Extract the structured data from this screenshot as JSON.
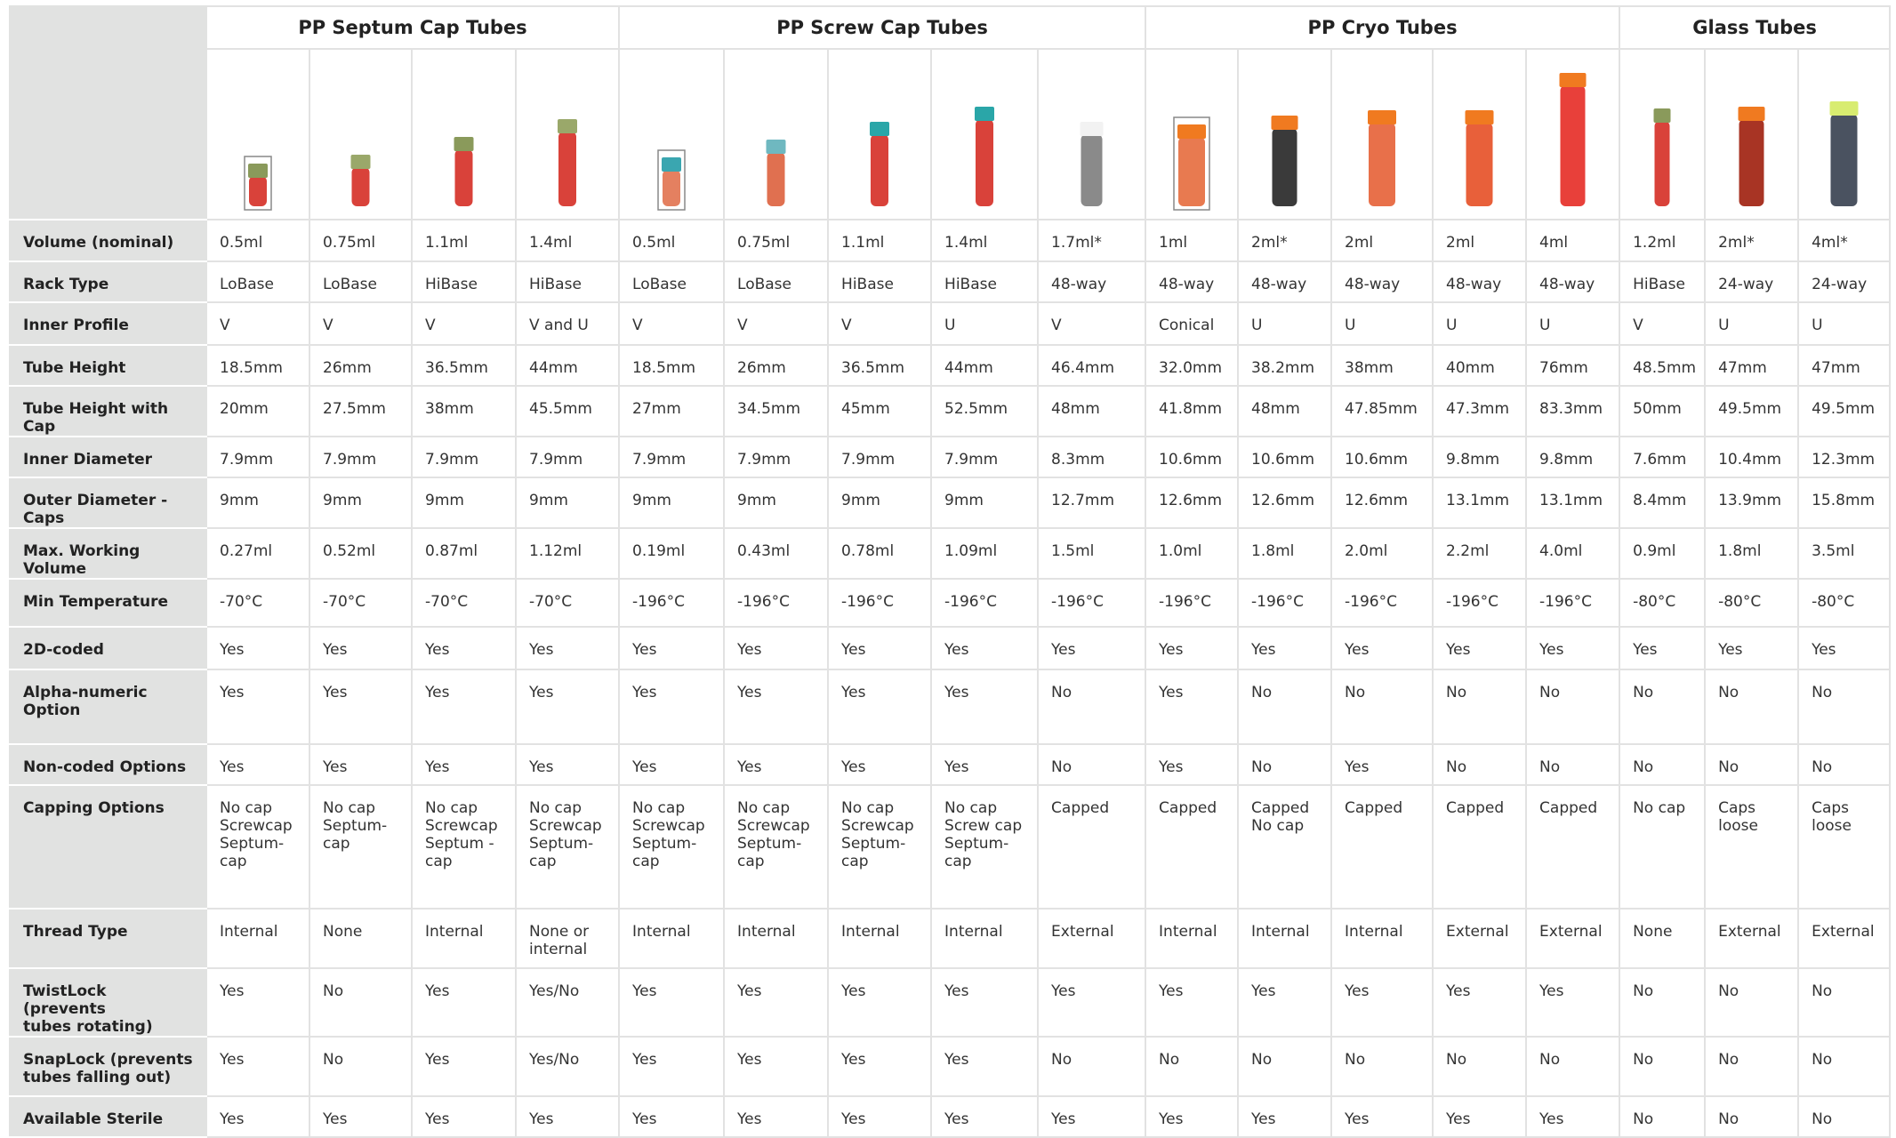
{
  "groups": [
    "PP Septum Cap Tubes",
    "PP Screw Cap Tubes",
    "PP Cryo Tubes",
    "Glass Tubes"
  ],
  "rows": [
    {
      "label": "Volume (nominal)",
      "cells": [
        "0.5ml",
        "0.75ml",
        "1.1ml",
        "1.4ml",
        "0.5ml",
        "0.75ml",
        "1.1ml",
        "1.4ml",
        "1.7ml*",
        "1ml",
        "2ml*",
        "2ml",
        "2ml",
        "4ml",
        "1.2ml",
        "2ml*",
        "4ml*"
      ]
    },
    {
      "label": "Rack Type",
      "cells": [
        "LoBase",
        "LoBase",
        "HiBase",
        "HiBase",
        "LoBase",
        "LoBase",
        "HiBase",
        "HiBase",
        "48-way",
        "48-way",
        "48-way",
        "48-way",
        "48-way",
        "48-way",
        "HiBase",
        "24-way",
        "24-way"
      ]
    },
    {
      "label": "Inner Profile",
      "cells": [
        "V",
        "V",
        "V",
        "V and U",
        "V",
        "V",
        "V",
        "U",
        "V",
        "Conical",
        "U",
        "U",
        "U",
        "U",
        "V",
        "U",
        "U"
      ]
    },
    {
      "label": "Tube Height",
      "cells": [
        "18.5mm",
        "26mm",
        "36.5mm",
        "44mm",
        "18.5mm",
        "26mm",
        "36.5mm",
        "44mm",
        "46.4mm",
        "32.0mm",
        "38.2mm",
        "38mm",
        "40mm",
        "76mm",
        "48.5mm",
        "47mm",
        "47mm"
      ]
    },
    {
      "label": "Tube Height with Cap",
      "cells": [
        "20mm",
        "27.5mm",
        "38mm",
        "45.5mm",
        "27mm",
        "34.5mm",
        "45mm",
        "52.5mm",
        "48mm",
        "41.8mm",
        "48mm",
        "47.85mm",
        "47.3mm",
        "83.3mm",
        "50mm",
        "49.5mm",
        "49.5mm"
      ]
    },
    {
      "label": "Inner Diameter",
      "cells": [
        "7.9mm",
        "7.9mm",
        "7.9mm",
        "7.9mm",
        "7.9mm",
        "7.9mm",
        "7.9mm",
        "7.9mm",
        "8.3mm",
        "10.6mm",
        "10.6mm",
        "10.6mm",
        "9.8mm",
        "9.8mm",
        "7.6mm",
        "10.4mm",
        "12.3mm"
      ]
    },
    {
      "label": "Outer Diameter -Caps",
      "cells": [
        "9mm",
        "9mm",
        "9mm",
        "9mm",
        "9mm",
        "9mm",
        "9mm",
        "9mm",
        "12.7mm",
        "12.6mm",
        "12.6mm",
        "12.6mm",
        "13.1mm",
        "13.1mm",
        "8.4mm",
        "13.9mm",
        "15.8mm"
      ]
    },
    {
      "label": "Max. Working Volume",
      "cells": [
        "0.27ml",
        "0.52ml",
        "0.87ml",
        "1.12ml",
        "0.19ml",
        "0.43ml",
        "0.78ml",
        "1.09ml",
        "1.5ml",
        "1.0ml",
        "1.8ml",
        "2.0ml",
        "2.2ml",
        "4.0ml",
        "0.9ml",
        "1.8ml",
        "3.5ml"
      ]
    },
    {
      "label": "Min Temperature",
      "cells": [
        "-70°C",
        "-70°C",
        "-70°C",
        "-70°C",
        "-196°C",
        "-196°C",
        "-196°C",
        "-196°C",
        "-196°C",
        "-196°C",
        "-196°C",
        "-196°C",
        "-196°C",
        "-196°C",
        "-80°C",
        "-80°C",
        "-80°C"
      ]
    },
    {
      "label": "2D-coded",
      "cells": [
        "Yes",
        "Yes",
        "Yes",
        "Yes",
        "Yes",
        "Yes",
        "Yes",
        "Yes",
        "Yes",
        "Yes",
        "Yes",
        "Yes",
        "Yes",
        "Yes",
        "Yes",
        "Yes",
        "Yes"
      ]
    },
    {
      "label": "Alpha-numeric\nOption",
      "cells": [
        "Yes",
        "Yes",
        "Yes",
        "Yes",
        "Yes",
        "Yes",
        "Yes",
        "Yes",
        "No",
        "Yes",
        "No",
        "No",
        "No",
        "No",
        "No",
        "No",
        "No"
      ]
    },
    {
      "label": "Non-coded Options",
      "cells": [
        "Yes",
        "Yes",
        "Yes",
        "Yes",
        "Yes",
        "Yes",
        "Yes",
        "Yes",
        "No",
        "Yes",
        "No",
        "Yes",
        "No",
        "No",
        "No",
        "No",
        "No"
      ]
    },
    {
      "label": "Capping Options",
      "cells": [
        "No cap\nScrewcap\nSeptum-\ncap",
        "No cap\nSeptum-\ncap",
        "No cap\nScrewcap\nSeptum -\ncap",
        "No cap\nScrewcap\nSeptum-\ncap",
        "No cap\nScrewcap\nSeptum-\ncap",
        "No cap\nScrewcap\nSeptum-\ncap",
        "No cap\nScrewcap\nSeptum-\ncap",
        "No cap\nScrew cap\nSeptum-\ncap",
        "Capped",
        "Capped",
        "Capped\nNo cap",
        "Capped",
        "Capped",
        "Capped",
        "No cap",
        "Caps\nloose",
        "Caps\nloose"
      ]
    },
    {
      "label": "Thread Type",
      "cells": [
        "Internal",
        "None",
        "Internal",
        "None or\ninternal",
        "Internal",
        "Internal",
        "Internal",
        "Internal",
        "External",
        "Internal",
        "Internal",
        "Internal",
        "External",
        "External",
        "None",
        "External",
        "External"
      ]
    },
    {
      "label": "TwistLock (prevents\ntubes rotating)",
      "cells": [
        "Yes",
        "No",
        "Yes",
        "Yes/No",
        "Yes",
        "Yes",
        "Yes",
        "Yes",
        "Yes",
        "Yes",
        "Yes",
        "Yes",
        "Yes",
        "Yes",
        "No",
        "No",
        "No"
      ]
    },
    {
      "label": "SnapLock (prevents\ntubes falling out)",
      "cells": [
        "Yes",
        "No",
        "Yes",
        "Yes/No",
        "Yes",
        "Yes",
        "Yes",
        "Yes",
        "No",
        "No",
        "No",
        "No",
        "No",
        "No",
        "No",
        "No",
        "No"
      ]
    },
    {
      "label": "Available Sterile",
      "cells": [
        "Yes",
        "Yes",
        "Yes",
        "Yes",
        "Yes",
        "Yes",
        "Yes",
        "Yes",
        "Yes",
        "Yes",
        "Yes",
        "Yes",
        "Yes",
        "Yes",
        "No",
        "No",
        "No"
      ]
    }
  ]
}
